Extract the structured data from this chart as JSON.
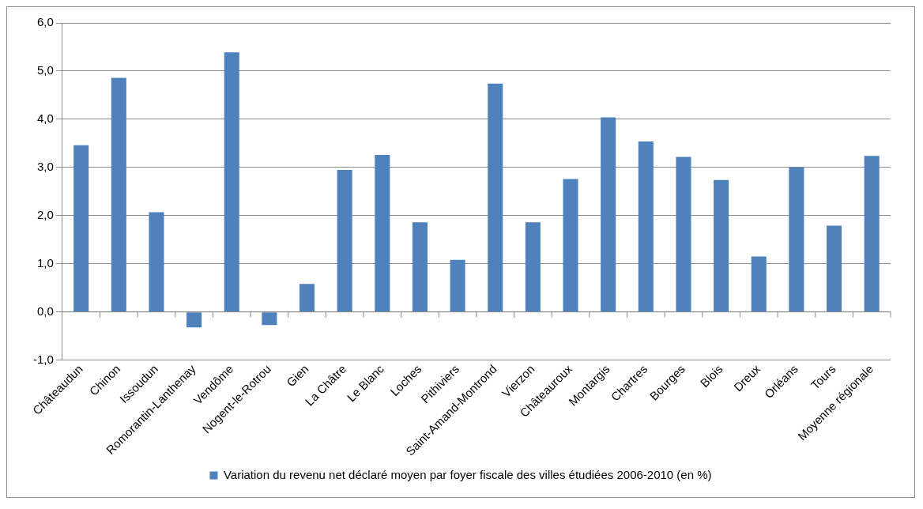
{
  "chart_data": {
    "type": "bar",
    "categories": [
      "Châteaudun",
      "Chinon",
      "Issoudun",
      "Romorantin-Lanthenay",
      "Vendôme",
      "Nogent-le-Rotrou",
      "Gien",
      "La Châtre",
      "Le Blanc",
      "Loches",
      "Pithiviers",
      "Saint-Amand-Montrond",
      "Vierzon",
      "Châteauroux",
      "Montargis",
      "Chartres",
      "Bourges",
      "Blois",
      "Dreux",
      "Orléans",
      "Tours",
      "Moyenne régionale"
    ],
    "series": [
      {
        "name": "Variation du revenu net déclaré moyen par foyer fiscale des villes étudiées 2006-2010 (en %)",
        "color": "#4f81bd",
        "values": [
          3.46,
          4.86,
          2.07,
          -0.32,
          5.39,
          -0.27,
          0.58,
          2.95,
          3.26,
          1.86,
          1.08,
          4.74,
          1.86,
          2.76,
          4.04,
          3.54,
          3.22,
          2.74,
          1.15,
          3.0,
          1.79,
          3.24
        ]
      }
    ],
    "ylim": [
      -1,
      6
    ],
    "yticks": [
      {
        "value": -1,
        "label": "-1,0"
      },
      {
        "value": 0,
        "label": "0,0"
      },
      {
        "value": 1,
        "label": "1,0"
      },
      {
        "value": 2,
        "label": "2,0"
      },
      {
        "value": 3,
        "label": "3,0"
      },
      {
        "value": 4,
        "label": "4,0"
      },
      {
        "value": 5,
        "label": "5,0"
      },
      {
        "value": 6,
        "label": "6,0"
      }
    ],
    "grid": "y",
    "legend": "bottom"
  }
}
